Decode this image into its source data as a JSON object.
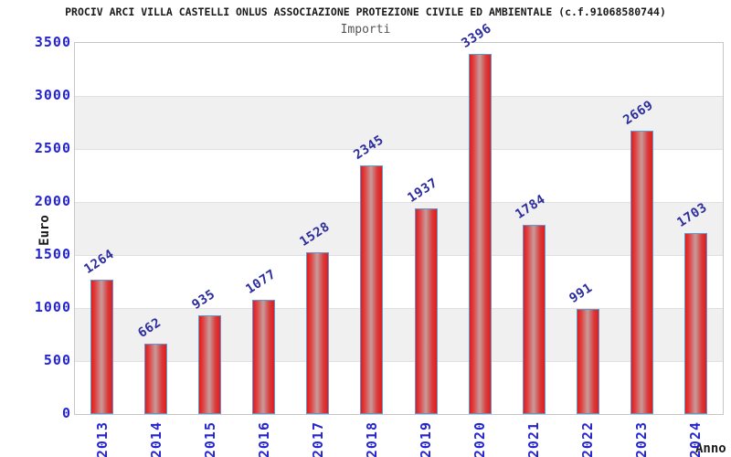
{
  "chart_data": {
    "type": "bar",
    "title": "PROCIV ARCI VILLA CASTELLI ONLUS ASSOCIAZIONE PROTEZIONE CIVILE ED AMBIENTALE (c.f.91068580744)",
    "subtitle": "Importi",
    "xlabel": "Anno",
    "ylabel": "Euro",
    "categories": [
      "2013",
      "2014",
      "2015",
      "2016",
      "2017",
      "2018",
      "2019",
      "2020",
      "2021",
      "2022",
      "2023",
      "2024"
    ],
    "values": [
      1264,
      662,
      935,
      1077,
      1528,
      2345,
      1937,
      3396,
      1784,
      991,
      2669,
      1703
    ],
    "ylim": [
      0,
      3500
    ],
    "yticks": [
      0,
      500,
      1000,
      1500,
      2000,
      2500,
      3000,
      3500
    ],
    "grid": "alternating-horizontal-bands",
    "legend_position": "none",
    "value_labels": "above-bars-rotated",
    "category_labels": "rotated-vertical",
    "colors": {
      "bar_fill_edge": "#e31b1b",
      "bar_fill_highlight": "#c89b9b",
      "bar_border": "#5b9bd5",
      "tick_label_blue": "#2424d0",
      "value_label_navy": "#2d2d9d",
      "band_gray": "#f0f0f0",
      "subtitle_gray": "#555555",
      "title_color": "#1a1a1a"
    }
  }
}
